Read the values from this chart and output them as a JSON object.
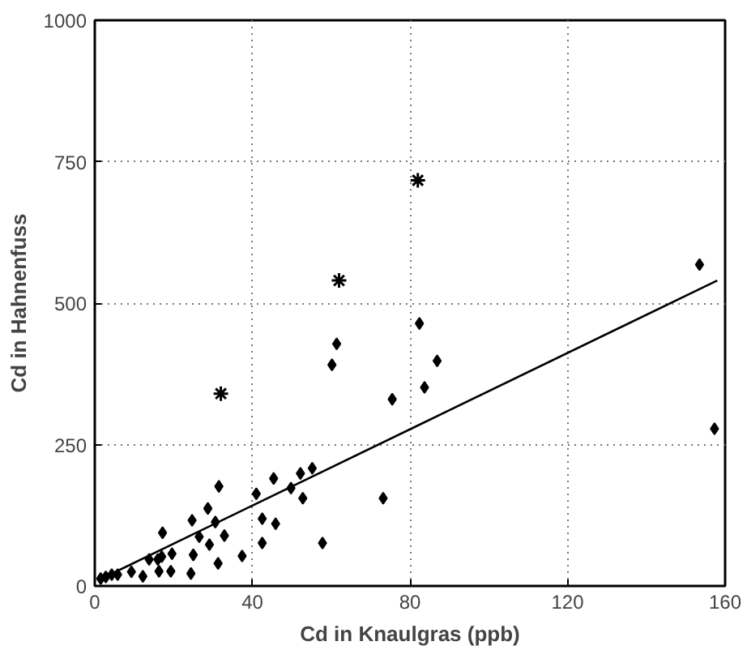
{
  "chart_data": {
    "type": "scatter",
    "xlabel": "Cd in Knaulgras (ppb)",
    "ylabel": "Cd in Hahnenfuss",
    "xlim": [
      0,
      160
    ],
    "ylim": [
      0,
      1000
    ],
    "xticks": [
      0,
      40,
      80,
      120,
      160
    ],
    "yticks": [
      0,
      250,
      500,
      750,
      1000
    ],
    "grid": true,
    "line_style": "solid",
    "series": [
      {
        "marker": "diamond",
        "color": "#000000",
        "x": [
          1.5,
          2.8,
          4.3,
          5.8,
          9.3,
          12.2,
          13.8,
          16,
          16.3,
          17,
          17.2,
          19.3,
          19.6,
          24.4,
          25,
          24.7,
          26.5,
          28.7,
          29.1,
          30.6,
          31.3,
          31.5,
          32.9,
          37.4,
          41,
          42.5,
          42.5,
          45.4,
          45.9,
          49.8,
          52.2,
          52.8,
          55.2,
          57.8,
          60.2,
          61.4,
          73.2,
          75.5,
          82.4,
          83.7,
          86.9,
          153.5,
          157.3
        ],
        "values": [
          13,
          16,
          20,
          20,
          25,
          17,
          47,
          47,
          26,
          52,
          94,
          26,
          57,
          22,
          55,
          116,
          87,
          137,
          73,
          113,
          40,
          176,
          89,
          53,
          163,
          119,
          76,
          190,
          110,
          173,
          199,
          155,
          208,
          76,
          391,
          428,
          155,
          330,
          464,
          351,
          398,
          568,
          278
        ]
      },
      {
        "marker": "cross",
        "color": "#000000",
        "x": [
          32,
          62,
          82
        ],
        "values": [
          340,
          540,
          717
        ]
      },
      {
        "type": "line",
        "marker": "none",
        "color": "#000000",
        "x": [
          2,
          158
        ],
        "values": [
          14,
          540
        ]
      }
    ]
  }
}
